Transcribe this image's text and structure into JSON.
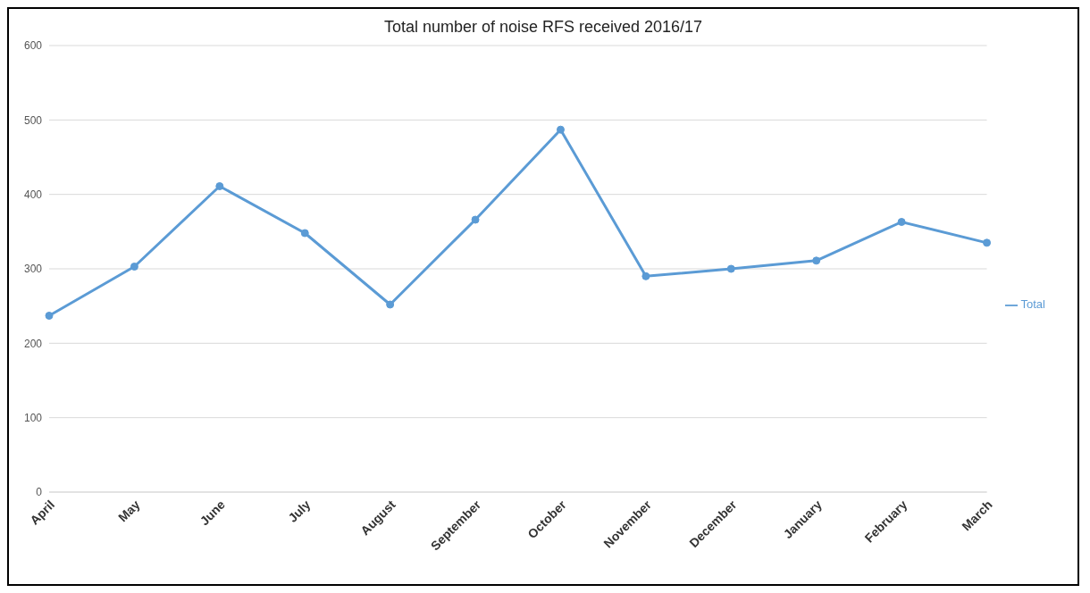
{
  "chart_data": {
    "type": "line",
    "title": "Total number of noise RFS received 2016/17",
    "categories": [
      "April",
      "May",
      "June",
      "July",
      "August",
      "September",
      "October",
      "November",
      "December",
      "January",
      "February",
      "March"
    ],
    "series": [
      {
        "name": "Total",
        "color": "#5b9bd5",
        "values": [
          237,
          303,
          411,
          348,
          252,
          366,
          487,
          290,
          300,
          311,
          363,
          335
        ]
      }
    ],
    "ylim": [
      0,
      600
    ],
    "yticks": [
      0,
      100,
      200,
      300,
      400,
      500,
      600
    ],
    "grid": "y",
    "legend": "right",
    "marker": "circle",
    "line_style": "solid"
  }
}
